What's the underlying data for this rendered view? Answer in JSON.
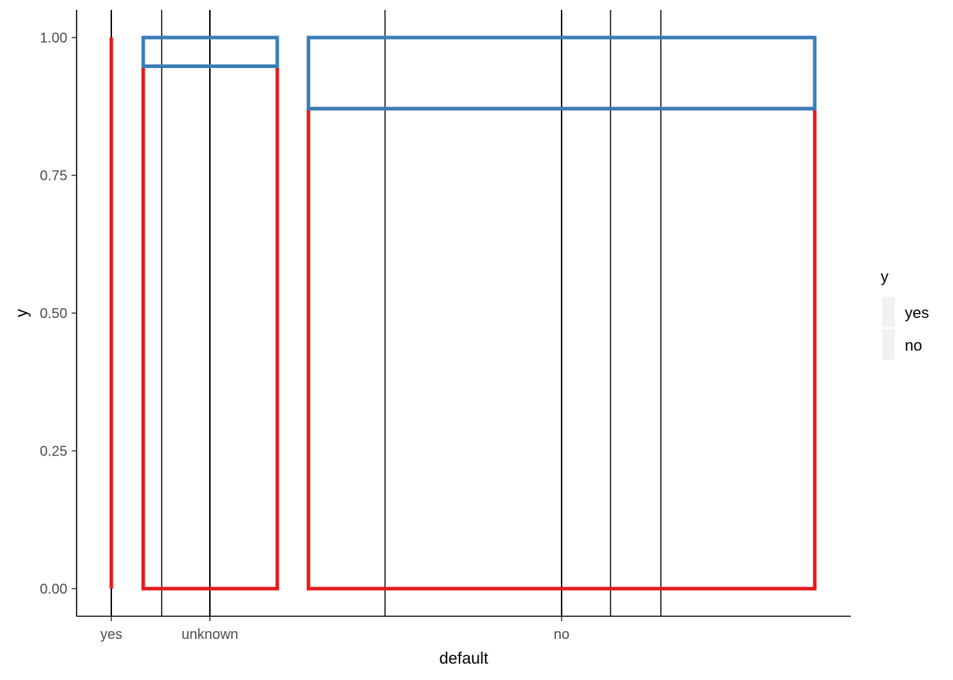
{
  "chart_data": {
    "type": "mosaic",
    "xlabel": "default",
    "ylabel": "y",
    "ylim": [
      0,
      1
    ],
    "y_ticks": [
      "0.00",
      "0.25",
      "0.50",
      "0.75",
      "1.00"
    ],
    "y_tick_values": [
      0,
      0.25,
      0.5,
      0.75,
      1.0
    ],
    "categories": [
      "yes",
      "unknown",
      "no"
    ],
    "category_share": [
      0.0001,
      0.21,
      0.79
    ],
    "series": [
      {
        "name": "yes",
        "color": "#377eb8",
        "values": [
          0.0,
          0.052,
          0.129
        ]
      },
      {
        "name": "no",
        "color": "#e41a1c",
        "values": [
          1.0,
          0.948,
          0.871
        ]
      }
    ],
    "legend": {
      "title": "y",
      "position": "right",
      "entries": [
        "yes",
        "no"
      ]
    },
    "grid": false
  }
}
